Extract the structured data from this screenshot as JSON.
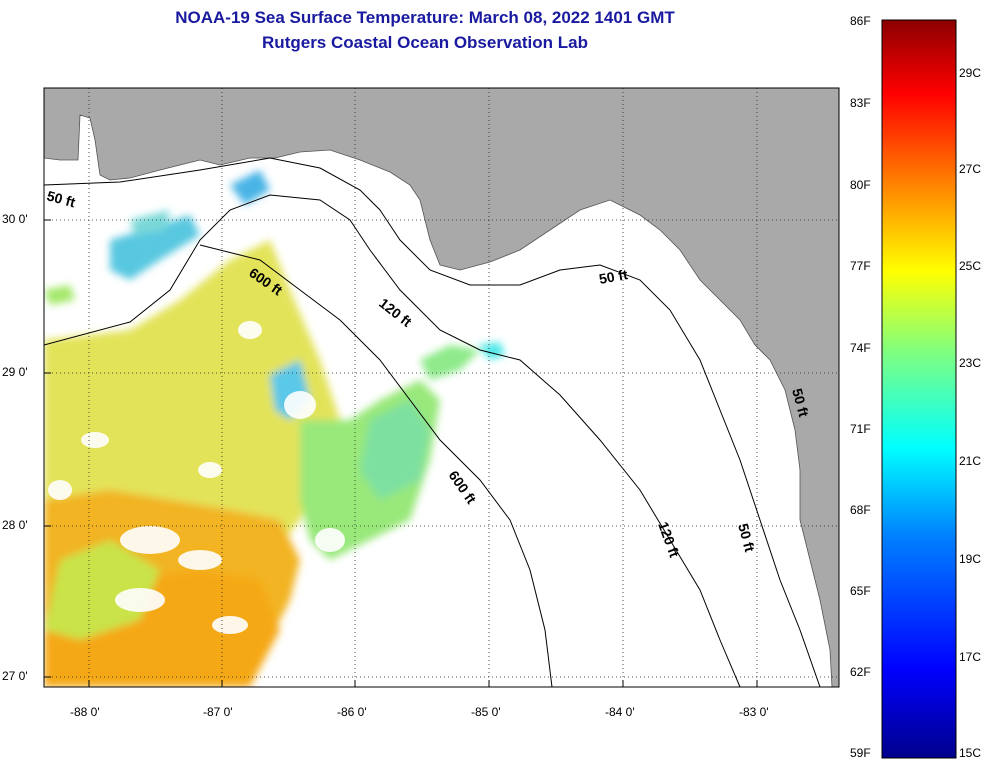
{
  "title": {
    "line1": "NOAA-19 Sea Surface Temperature:  March 08, 2022 1401 GMT",
    "line2": "Rutgers Coastal Ocean Observation Lab"
  },
  "map": {
    "longitude_labels": [
      "-88 0'",
      "-87 0'",
      "-86 0'",
      "-85 0'",
      "-84 0'",
      "-83 0'"
    ],
    "latitude_labels": [
      "30 0'",
      "29 0'",
      "28 0'",
      "27 0'"
    ],
    "isobath_labels": [
      "50 ft",
      "600 ft",
      "120 ft",
      "50 ft",
      "600 ft",
      "120 ft",
      "50 ft",
      "50 ft"
    ],
    "colors": {
      "land": "#a9a9a9",
      "ocean_nodata": "#ffffff",
      "grid": "#000000"
    }
  },
  "colorbar": {
    "fahrenheit_labels": [
      "86F",
      "83F",
      "80F",
      "77F",
      "74F",
      "71F",
      "68F",
      "65F",
      "62F",
      "59F"
    ],
    "celsius_labels": [
      "29C",
      "27C",
      "25C",
      "23C",
      "21C",
      "19C",
      "17C",
      "15C"
    ],
    "gradient_stops": [
      "#00008b",
      "#0000ff",
      "#0080ff",
      "#00ffff",
      "#80ff80",
      "#ffff00",
      "#ff8000",
      "#ff0000",
      "#8b0000"
    ]
  }
}
